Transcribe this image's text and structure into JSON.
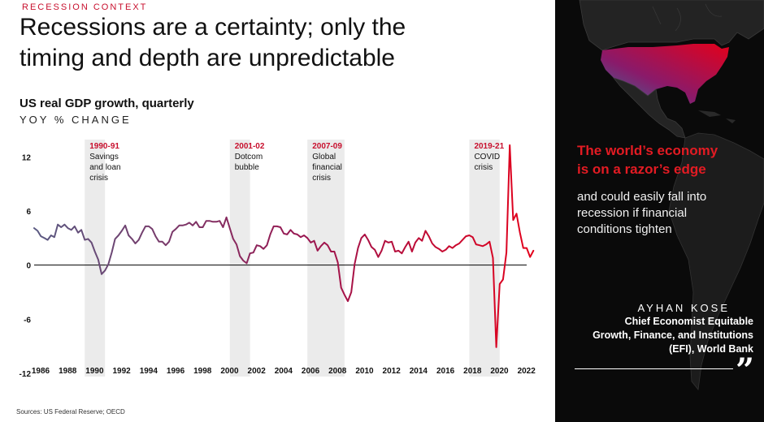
{
  "header": {
    "eyebrow": "RECESSION CONTEXT",
    "headline_line1": "Recessions are a certainty; only the",
    "headline_line2": "timing and depth are unpredictable"
  },
  "chart_data": {
    "type": "line",
    "title": "US real GDP growth, quarterly",
    "subtitle": "YOY % CHANGE",
    "xlim": [
      1986,
      2022.5
    ],
    "ylim": [
      -12,
      15
    ],
    "yticks": [
      12,
      6,
      0,
      -6,
      -12
    ],
    "xticks": [
      1986,
      1988,
      1990,
      1992,
      1994,
      1996,
      1998,
      2000,
      2002,
      2004,
      2006,
      2008,
      2010,
      2012,
      2014,
      2016,
      2018,
      2020,
      2022
    ],
    "series": [
      {
        "color_start": "#5a5a82",
        "color_end": "#e3001b",
        "points": [
          [
            1986.0,
            4.1
          ],
          [
            1986.25,
            3.8
          ],
          [
            1986.5,
            3.2
          ],
          [
            1986.75,
            3.0
          ],
          [
            1987.0,
            2.8
          ],
          [
            1987.25,
            3.3
          ],
          [
            1987.5,
            3.1
          ],
          [
            1987.75,
            4.5
          ],
          [
            1988.0,
            4.2
          ],
          [
            1988.25,
            4.5
          ],
          [
            1988.5,
            4.1
          ],
          [
            1988.75,
            3.9
          ],
          [
            1989.0,
            4.3
          ],
          [
            1989.25,
            3.6
          ],
          [
            1989.5,
            3.9
          ],
          [
            1989.75,
            2.8
          ],
          [
            1990.0,
            2.9
          ],
          [
            1990.25,
            2.5
          ],
          [
            1990.5,
            1.5
          ],
          [
            1990.75,
            0.6
          ],
          [
            1991.0,
            -1.0
          ],
          [
            1991.25,
            -0.6
          ],
          [
            1991.5,
            0.1
          ],
          [
            1991.75,
            1.4
          ],
          [
            1992.0,
            2.9
          ],
          [
            1992.25,
            3.3
          ],
          [
            1992.5,
            3.8
          ],
          [
            1992.75,
            4.4
          ],
          [
            1993.0,
            3.3
          ],
          [
            1993.25,
            2.9
          ],
          [
            1993.5,
            2.4
          ],
          [
            1993.75,
            2.8
          ],
          [
            1994.0,
            3.6
          ],
          [
            1994.25,
            4.3
          ],
          [
            1994.5,
            4.3
          ],
          [
            1994.75,
            4.0
          ],
          [
            1995.0,
            3.2
          ],
          [
            1995.25,
            2.6
          ],
          [
            1995.5,
            2.6
          ],
          [
            1995.75,
            2.2
          ],
          [
            1996.0,
            2.6
          ],
          [
            1996.25,
            3.7
          ],
          [
            1996.5,
            4.0
          ],
          [
            1996.75,
            4.4
          ],
          [
            1997.0,
            4.4
          ],
          [
            1997.25,
            4.5
          ],
          [
            1997.5,
            4.7
          ],
          [
            1997.75,
            4.4
          ],
          [
            1998.0,
            4.8
          ],
          [
            1998.25,
            4.2
          ],
          [
            1998.5,
            4.2
          ],
          [
            1998.75,
            4.9
          ],
          [
            1999.0,
            4.9
          ],
          [
            1999.25,
            4.8
          ],
          [
            1999.5,
            4.8
          ],
          [
            1999.75,
            4.9
          ],
          [
            2000.0,
            4.2
          ],
          [
            2000.25,
            5.3
          ],
          [
            2000.5,
            4.1
          ],
          [
            2000.75,
            2.9
          ],
          [
            2001.0,
            2.3
          ],
          [
            2001.25,
            1.0
          ],
          [
            2001.5,
            0.5
          ],
          [
            2001.75,
            0.2
          ],
          [
            2002.0,
            1.3
          ],
          [
            2002.25,
            1.4
          ],
          [
            2002.5,
            2.2
          ],
          [
            2002.75,
            2.1
          ],
          [
            2003.0,
            1.8
          ],
          [
            2003.25,
            2.2
          ],
          [
            2003.5,
            3.4
          ],
          [
            2003.75,
            4.3
          ],
          [
            2004.0,
            4.3
          ],
          [
            2004.25,
            4.2
          ],
          [
            2004.5,
            3.5
          ],
          [
            2004.75,
            3.4
          ],
          [
            2005.0,
            3.9
          ],
          [
            2005.25,
            3.5
          ],
          [
            2005.5,
            3.4
          ],
          [
            2005.75,
            3.1
          ],
          [
            2006.0,
            3.3
          ],
          [
            2006.25,
            3.0
          ],
          [
            2006.5,
            2.5
          ],
          [
            2006.75,
            2.7
          ],
          [
            2007.0,
            1.6
          ],
          [
            2007.25,
            2.1
          ],
          [
            2007.5,
            2.5
          ],
          [
            2007.75,
            2.2
          ],
          [
            2008.0,
            1.5
          ],
          [
            2008.25,
            1.5
          ],
          [
            2008.5,
            0.3
          ],
          [
            2008.75,
            -2.5
          ],
          [
            2009.0,
            -3.3
          ],
          [
            2009.25,
            -4.0
          ],
          [
            2009.5,
            -3.0
          ],
          [
            2009.75,
            0.1
          ],
          [
            2010.0,
            1.9
          ],
          [
            2010.25,
            3.0
          ],
          [
            2010.5,
            3.4
          ],
          [
            2010.75,
            2.8
          ],
          [
            2011.0,
            2.0
          ],
          [
            2011.25,
            1.7
          ],
          [
            2011.5,
            0.9
          ],
          [
            2011.75,
            1.6
          ],
          [
            2012.0,
            2.7
          ],
          [
            2012.25,
            2.5
          ],
          [
            2012.5,
            2.6
          ],
          [
            2012.75,
            1.5
          ],
          [
            2013.0,
            1.6
          ],
          [
            2013.25,
            1.3
          ],
          [
            2013.5,
            2.0
          ],
          [
            2013.75,
            2.6
          ],
          [
            2014.0,
            1.5
          ],
          [
            2014.25,
            2.5
          ],
          [
            2014.5,
            3.0
          ],
          [
            2014.75,
            2.7
          ],
          [
            2015.0,
            3.8
          ],
          [
            2015.25,
            3.2
          ],
          [
            2015.5,
            2.4
          ],
          [
            2015.75,
            2.0
          ],
          [
            2016.0,
            1.8
          ],
          [
            2016.25,
            1.5
          ],
          [
            2016.5,
            1.7
          ],
          [
            2016.75,
            2.1
          ],
          [
            2017.0,
            1.9
          ],
          [
            2017.25,
            2.2
          ],
          [
            2017.5,
            2.4
          ],
          [
            2017.75,
            2.8
          ],
          [
            2018.0,
            3.2
          ],
          [
            2018.25,
            3.3
          ],
          [
            2018.5,
            3.1
          ],
          [
            2018.75,
            2.3
          ],
          [
            2019.0,
            2.2
          ],
          [
            2019.25,
            2.1
          ],
          [
            2019.5,
            2.3
          ],
          [
            2019.75,
            2.6
          ],
          [
            2020.0,
            0.8
          ],
          [
            2020.25,
            -9.1
          ],
          [
            2020.5,
            -2.1
          ],
          [
            2020.75,
            -1.6
          ],
          [
            2021.0,
            1.4
          ],
          [
            2021.25,
            13.3
          ],
          [
            2021.5,
            5.0
          ],
          [
            2021.75,
            5.7
          ],
          [
            2022.0,
            3.6
          ],
          [
            2022.25,
            1.9
          ],
          [
            2022.5,
            1.9
          ],
          [
            2022.75,
            0.9
          ],
          [
            2023.0,
            1.6
          ]
        ]
      }
    ],
    "recessions": [
      {
        "start": 1989.75,
        "end": 1991.25,
        "years": "1990-91",
        "label_lines": [
          "Savings",
          "and loan",
          "crisis"
        ]
      },
      {
        "start": 2000.5,
        "end": 2002.0,
        "years": "2001-02",
        "label_lines": [
          "Dotcom",
          "bubble"
        ]
      },
      {
        "start": 2006.25,
        "end": 2009.0,
        "years": "2007-09",
        "label_lines": [
          "Global",
          "financial",
          "crisis"
        ]
      },
      {
        "start": 2018.25,
        "end": 2020.5,
        "years": "2019-21",
        "label_lines": [
          "COVID",
          "crisis"
        ]
      }
    ],
    "colors": {
      "recession_band": "#ebebeb",
      "label_years": "#c8102e",
      "zero_line": "#000000"
    }
  },
  "source": "Sources: US Federal Reserve; OECD",
  "sidebar": {
    "map_highlight_colors": [
      "#e3001b",
      "#8a1a6a",
      "#3a6a9a"
    ],
    "razor_line1": "The world’s economy",
    "razor_line2": "is on a razor’s edge",
    "razor_sub_line1": "and could easily fall into",
    "razor_sub_line2": "recession if financial",
    "razor_sub_line3": "conditions tighten",
    "quote_name": "AYHAN KOSE",
    "role_line1": "Chief Economist Equitable",
    "role_line2": "Growth, Finance, and Institutions",
    "role_line3": "(EFI), World Bank",
    "quote_mark": "”"
  }
}
